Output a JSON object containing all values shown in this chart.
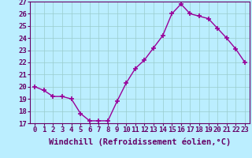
{
  "x": [
    0,
    1,
    2,
    3,
    4,
    5,
    6,
    7,
    8,
    9,
    10,
    11,
    12,
    13,
    14,
    15,
    16,
    17,
    18,
    19,
    20,
    21,
    22,
    23
  ],
  "y": [
    20.0,
    19.7,
    19.2,
    19.2,
    19.0,
    17.8,
    17.2,
    17.2,
    17.2,
    18.8,
    20.3,
    21.5,
    22.2,
    23.2,
    24.2,
    26.0,
    26.8,
    26.0,
    25.8,
    25.6,
    24.8,
    24.0,
    23.1,
    22.0
  ],
  "line_color": "#990099",
  "marker": "+",
  "marker_size": 4,
  "marker_color": "#990099",
  "bg_color": "#bbeeff",
  "grid_color": "#99cccc",
  "xlabel": "Windchill (Refroidissement éolien,°C)",
  "xlabel_fontsize": 7.5,
  "ylim": [
    17,
    27
  ],
  "xlim": [
    -0.5,
    23.5
  ],
  "yticks": [
    17,
    18,
    19,
    20,
    21,
    22,
    23,
    24,
    25,
    26,
    27
  ],
  "xticks": [
    0,
    1,
    2,
    3,
    4,
    5,
    6,
    7,
    8,
    9,
    10,
    11,
    12,
    13,
    14,
    15,
    16,
    17,
    18,
    19,
    20,
    21,
    22,
    23
  ],
  "tick_fontsize": 6.5,
  "line_width": 1.0,
  "text_color": "#660066"
}
